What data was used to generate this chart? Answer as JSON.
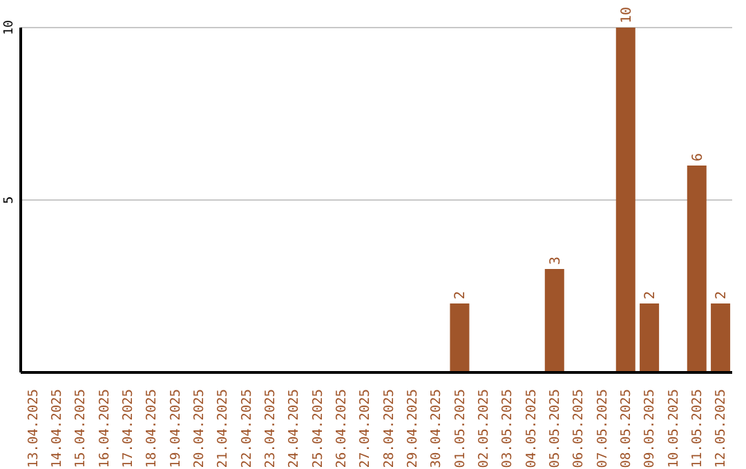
{
  "chart_data": {
    "type": "bar",
    "categories": [
      "13.04.2025",
      "14.04.2025",
      "15.04.2025",
      "16.04.2025",
      "17.04.2025",
      "18.04.2025",
      "19.04.2025",
      "20.04.2025",
      "21.04.2025",
      "22.04.2025",
      "23.04.2025",
      "24.04.2025",
      "25.04.2025",
      "26.04.2025",
      "27.04.2025",
      "28.04.2025",
      "29.04.2025",
      "30.04.2025",
      "01.05.2025",
      "02.05.2025",
      "03.05.2025",
      "04.05.2025",
      "05.05.2025",
      "06.05.2025",
      "07.05.2025",
      "08.05.2025",
      "09.05.2025",
      "10.05.2025",
      "11.05.2025",
      "12.05.2025"
    ],
    "values": [
      0,
      0,
      0,
      0,
      0,
      0,
      0,
      0,
      0,
      0,
      0,
      0,
      0,
      0,
      0,
      0,
      0,
      0,
      2,
      0,
      0,
      0,
      3,
      0,
      0,
      10,
      2,
      0,
      6,
      2
    ],
    "value_labels": [
      null,
      null,
      null,
      null,
      null,
      null,
      null,
      null,
      null,
      null,
      null,
      null,
      null,
      null,
      null,
      null,
      null,
      null,
      "2",
      null,
      null,
      null,
      "3",
      null,
      null,
      "10",
      "2",
      null,
      "6",
      "2"
    ],
    "color": "#a0552a",
    "ylim": [
      0,
      10
    ],
    "yticks": [
      5,
      10
    ],
    "grid": "y"
  }
}
